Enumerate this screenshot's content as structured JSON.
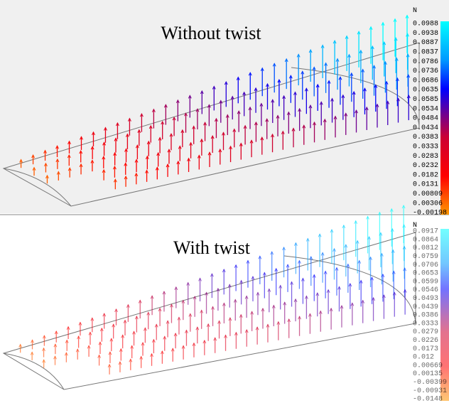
{
  "panels": [
    {
      "title": "Without twist",
      "unit": "N",
      "legend": [
        "0.0988",
        "0.0938",
        "0.0887",
        "0.0837",
        "0.0786",
        "0.0736",
        "0.0686",
        "0.0635",
        "0.0585",
        "0.0534",
        "0.0484",
        "0.0434",
        "0.0383",
        "0.0333",
        "0.0283",
        "0.0232",
        "0.0182",
        "0.0131",
        "0.00809",
        "0.00306",
        "-0.00198"
      ]
    },
    {
      "title": "With twist",
      "unit": "N",
      "legend": [
        "0.0917",
        "0.0864",
        "0.0812",
        "0.0759",
        "0.0706",
        "0.0653",
        "0.0599",
        "0.0546",
        "0.0493",
        "0.0439",
        "0.0386",
        "0.0333",
        "0.0279",
        "0.0226",
        "0.0173",
        "0.012",
        "0.00669",
        "0.00135",
        "-0.00399",
        "-0.00931",
        "-0.0148"
      ]
    }
  ]
}
